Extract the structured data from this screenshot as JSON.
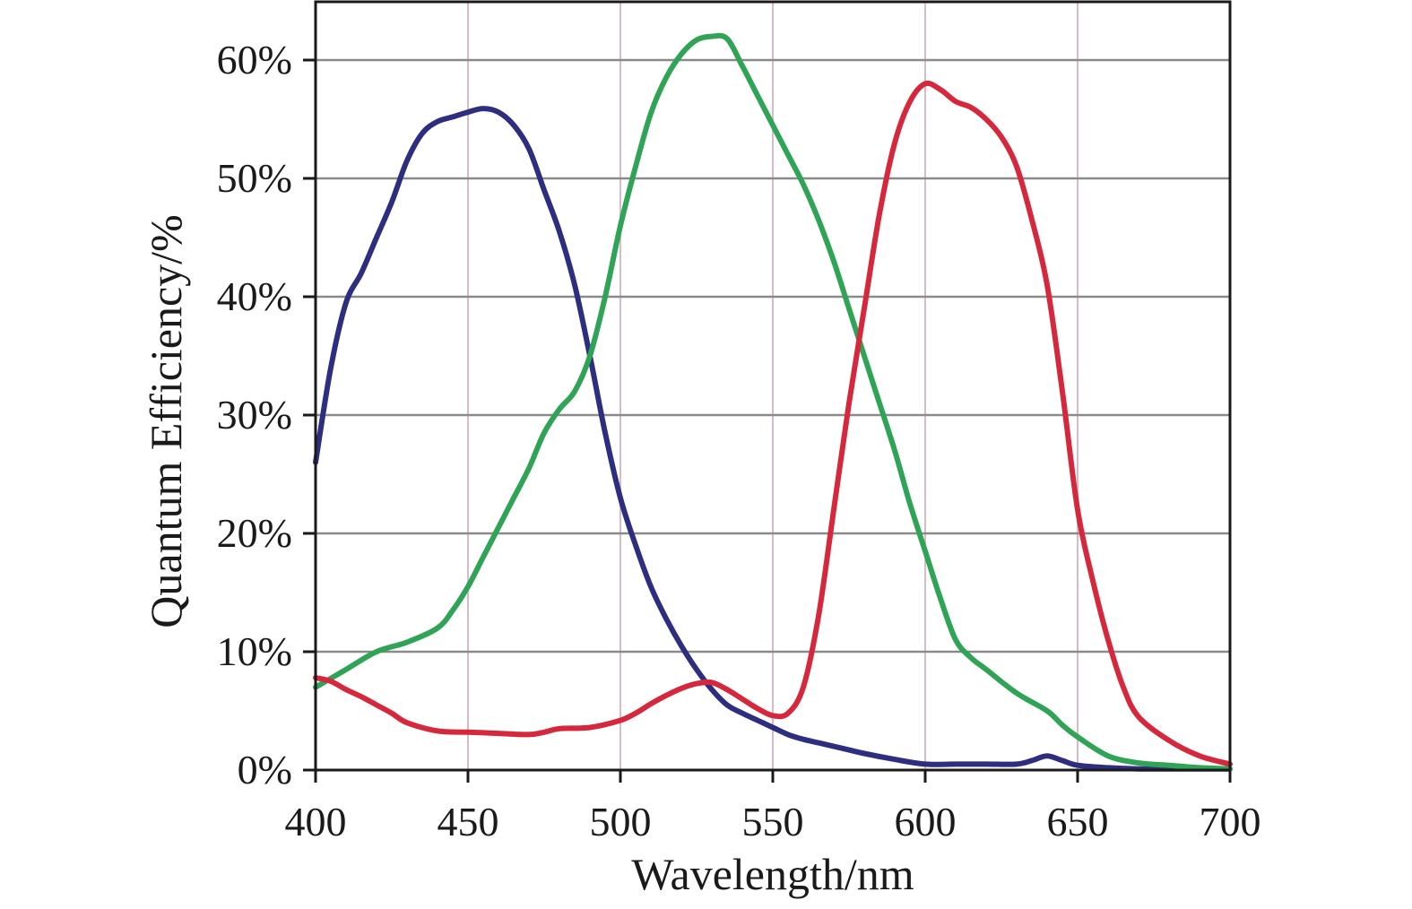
{
  "chart_data": {
    "type": "line",
    "title": "",
    "xlabel": "Wavelength/nm",
    "ylabel": "Quantum Efficiency/%",
    "xlim": [
      400,
      700
    ],
    "ylim": [
      0,
      65
    ],
    "x_ticks": [
      400,
      450,
      500,
      550,
      600,
      650,
      700
    ],
    "x_tick_labels": [
      "400",
      "450",
      "500",
      "550",
      "600",
      "650",
      "700"
    ],
    "y_ticks": [
      0,
      10,
      20,
      30,
      40,
      50,
      60
    ],
    "y_tick_labels": [
      "0%",
      "10%",
      "20%",
      "30%",
      "40%",
      "50%",
      "60%"
    ],
    "grid": true,
    "legend": "none",
    "series": [
      {
        "name": "Blue",
        "color": "#2e2e80",
        "x": [
          400,
          405,
          410,
          415,
          420,
          425,
          430,
          435,
          440,
          445,
          450,
          455,
          460,
          465,
          470,
          475,
          480,
          485,
          490,
          495,
          500,
          505,
          510,
          515,
          520,
          525,
          530,
          535,
          540,
          545,
          550,
          555,
          560,
          565,
          570,
          575,
          580,
          590,
          600,
          610,
          620,
          630,
          635,
          640,
          645,
          650,
          660,
          670,
          680,
          690,
          700
        ],
        "values": [
          26,
          34,
          39.5,
          42,
          45,
          48,
          51.5,
          53.8,
          54.8,
          55.2,
          55.6,
          55.9,
          55.6,
          54.5,
          52.5,
          49,
          45.5,
          41,
          35,
          28.5,
          23,
          19,
          15.5,
          12.8,
          10.5,
          8.5,
          6.8,
          5.5,
          4.8,
          4.2,
          3.6,
          3.0,
          2.6,
          2.3,
          2.0,
          1.7,
          1.4,
          0.9,
          0.5,
          0.5,
          0.5,
          0.5,
          0.8,
          1.2,
          0.8,
          0.4,
          0.2,
          0.1,
          0.1,
          0.1,
          0.1
        ]
      },
      {
        "name": "Green",
        "color": "#2fa356",
        "x": [
          400,
          410,
          420,
          430,
          440,
          445,
          450,
          455,
          460,
          465,
          470,
          475,
          480,
          485,
          490,
          495,
          500,
          505,
          510,
          515,
          520,
          525,
          530,
          535,
          540,
          545,
          550,
          555,
          560,
          565,
          570,
          575,
          580,
          585,
          590,
          595,
          600,
          605,
          610,
          615,
          620,
          630,
          640,
          645,
          650,
          660,
          670,
          680,
          690,
          700
        ],
        "values": [
          7,
          8.5,
          10,
          10.8,
          12,
          13.5,
          15.5,
          18,
          20.5,
          23,
          25.5,
          28.5,
          30.5,
          32,
          35,
          40,
          46,
          51,
          55.5,
          58.5,
          60.5,
          61.7,
          62,
          61.8,
          59.5,
          57,
          54.5,
          52,
          49.5,
          46.5,
          43,
          39,
          35,
          31,
          27,
          22.5,
          18.5,
          14.5,
          11,
          9.5,
          8.5,
          6.5,
          5,
          3.8,
          2.8,
          1.2,
          0.6,
          0.4,
          0.2,
          0.1
        ]
      },
      {
        "name": "Red",
        "color": "#d6283d",
        "x": [
          400,
          405,
          410,
          415,
          420,
          425,
          430,
          440,
          450,
          460,
          470,
          475,
          480,
          490,
          500,
          505,
          510,
          515,
          520,
          525,
          530,
          535,
          540,
          545,
          550,
          555,
          560,
          565,
          570,
          575,
          580,
          585,
          590,
          595,
          600,
          605,
          610,
          615,
          620,
          625,
          630,
          635,
          640,
          645,
          650,
          655,
          660,
          665,
          670,
          680,
          690,
          700
        ],
        "values": [
          7.8,
          7.5,
          6.8,
          6.2,
          5.5,
          4.8,
          4.0,
          3.3,
          3.2,
          3.1,
          3.0,
          3.2,
          3.5,
          3.6,
          4.2,
          4.8,
          5.6,
          6.3,
          6.9,
          7.3,
          7.4,
          6.8,
          6.0,
          5.2,
          4.6,
          4.8,
          7.0,
          13,
          22,
          31,
          39,
          47,
          53,
          56.5,
          58,
          57.5,
          56.5,
          56,
          55,
          53.5,
          51,
          46.5,
          41,
          32,
          22,
          16,
          11,
          7,
          4.5,
          2.5,
          1.2,
          0.5
        ]
      }
    ]
  }
}
